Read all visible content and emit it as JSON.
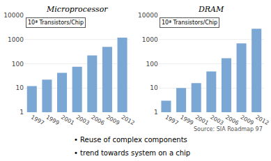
{
  "chart_data": [
    {
      "type": "bar",
      "title": "Microprocessor",
      "categories": [
        "1997",
        "1999",
        "2001",
        "2003",
        "2006",
        "2009",
        "2012"
      ],
      "values": [
        12,
        22,
        42,
        75,
        220,
        500,
        1200
      ],
      "color": "#7BA7D5",
      "log": "y",
      "ylim": [
        1,
        10000
      ],
      "yticks": [
        1,
        10,
        100,
        1000,
        10000
      ],
      "grid": true,
      "annotations": [
        "10ª Transistors/Chip"
      ]
    },
    {
      "type": "bar",
      "title": "DRAM",
      "categories": [
        "1997",
        "1999",
        "2001",
        "2003",
        "2006",
        "2009",
        "2012"
      ],
      "values": [
        3,
        10,
        16,
        48,
        170,
        700,
        2800
      ],
      "color": "#7BA7D5",
      "log": "y",
      "ylim": [
        1,
        10000
      ],
      "yticks": [
        1,
        10,
        100,
        1000,
        10000
      ],
      "grid": true,
      "annotations": [
        "10ª Transistors/Chip",
        "Source: SIA Roadmap 97",
        "• Reuse of complex components",
        "• trend towards system on a chip"
      ]
    }
  ]
}
